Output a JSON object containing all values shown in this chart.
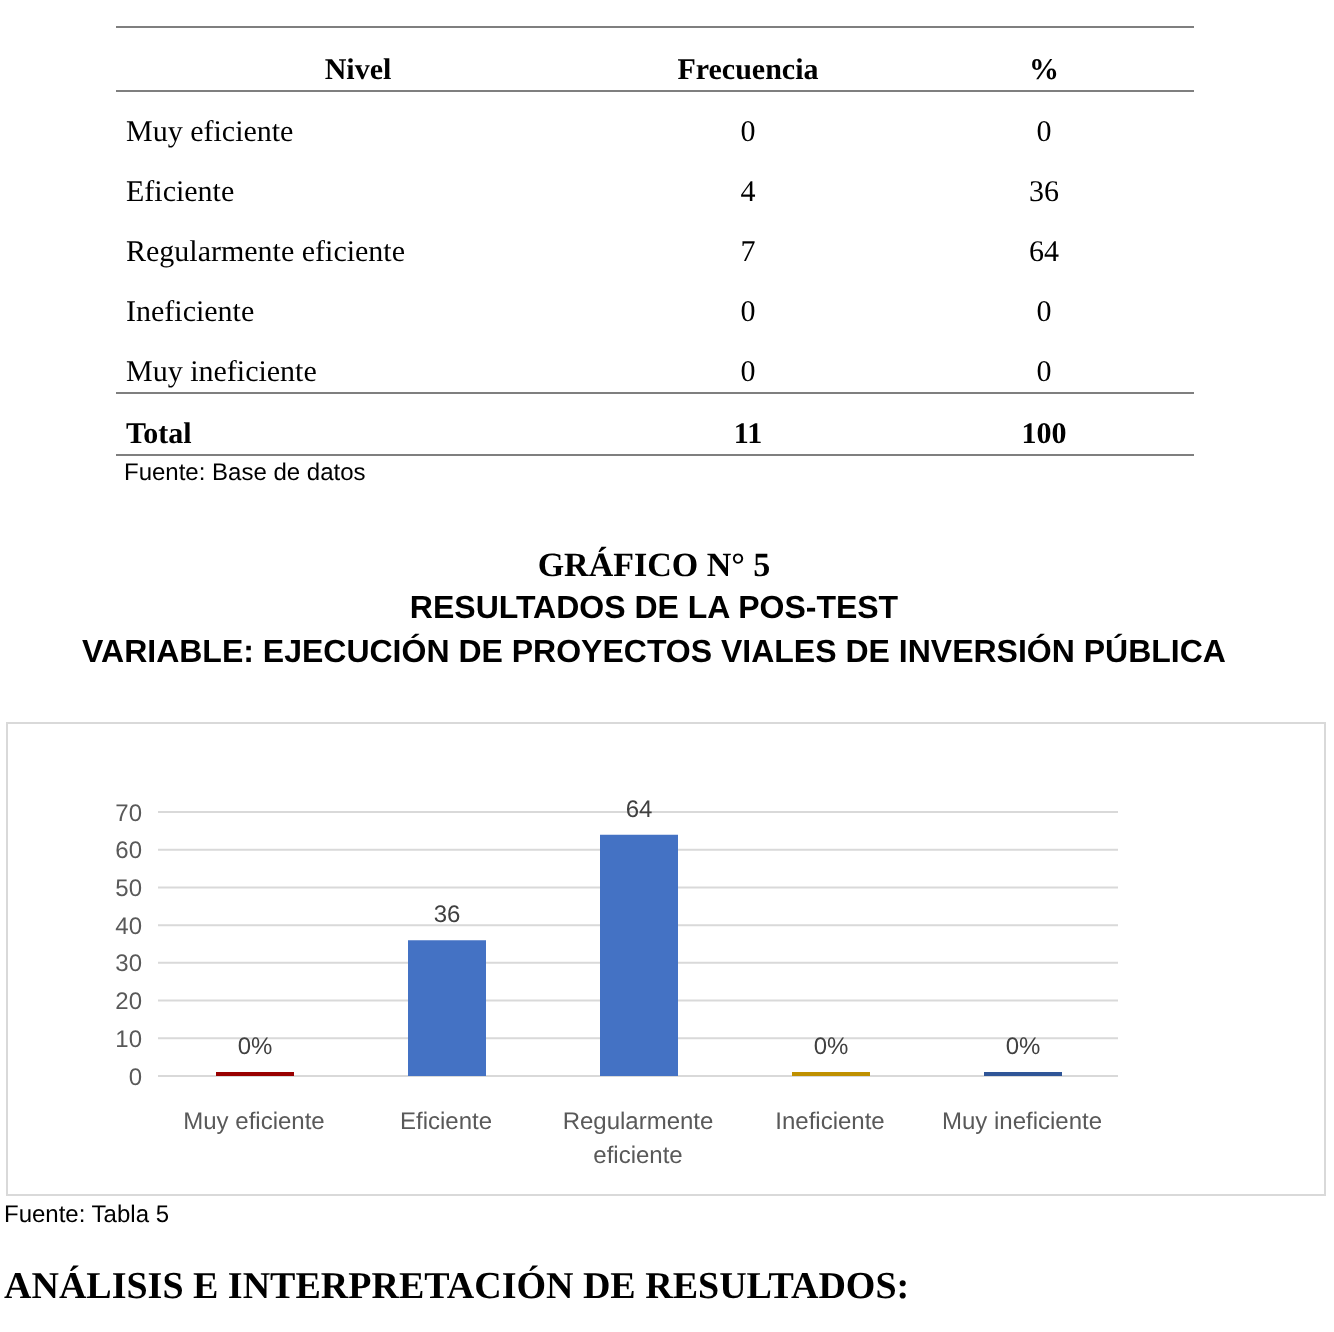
{
  "chart_data": [
    {
      "type": "other",
      "xlabel": "Nivel",
      "categories": [
        "Muy eficiente",
        "Eficiente",
        "Regularmente eficiente",
        "Ineficiente",
        "Muy ineficiente"
      ],
      "series": [
        {
          "name": "Frecuencia",
          "values": [
            0,
            4,
            7,
            0,
            0
          ]
        },
        {
          "name": "%",
          "values": [
            0,
            36,
            64,
            0,
            0
          ]
        }
      ],
      "data_labels": true,
      "totals": [
        "11",
        "100"
      ],
      "annotations": [
        "Total",
        "Fuente: Base de datos"
      ]
    },
    {
      "type": "bar",
      "title": "GRÁFICO N° 5",
      "subtitle": "RESULTADOS DE LA POS-TEST\nVARIABLE: EJECUCIÓN DE PROYECTOS VIALES DE INVERSIÓN PÚBLICA",
      "categories": [
        "Muy eficiente",
        "Eficiente",
        "Regularmente eficiente",
        "Ineficiente",
        "Muy ineficiente"
      ],
      "values": [
        0,
        36,
        64,
        0,
        0
      ],
      "colors": [
        "#990000",
        "#4472c4",
        "#4472c4",
        "#bf9000",
        "#2f5597"
      ],
      "value_labels": [
        "0%",
        "36",
        "64",
        "0%",
        "0%"
      ],
      "ylim": [
        0,
        70
      ],
      "yticks": [
        0,
        10,
        20,
        30,
        40,
        50,
        60,
        70
      ],
      "grid": "y",
      "annotations": [
        "Fuente: Tabla 5",
        "ANÁLISIS E INTERPRETACIÓN DE RESULTADOS:"
      ]
    }
  ]
}
